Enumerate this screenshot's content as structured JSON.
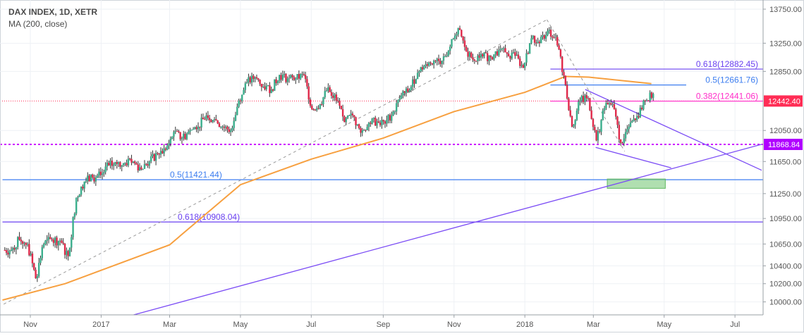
{
  "header": {
    "title": "DAX INDEX, 1D, XETR",
    "indicator": "MA (200, close)"
  },
  "colors": {
    "up": "#3aae8c",
    "down": "#e0294a",
    "ma": "#f7a040",
    "fib_purple": "#6a40f0",
    "fib_blue": "#3d7ef0",
    "fib_pink": "#ff2bc8",
    "magenta": "#cc10ff",
    "last_price": "#ff2d55",
    "trend": "#7b4cf5",
    "zone": "#8fd18f"
  },
  "chart_data": {
    "type": "candlestick",
    "title": "DAX INDEX, 1D, XETR",
    "y_scale": "log",
    "ylim": [
      9870,
      13850
    ],
    "y_ticks": [
      {
        "value": 13750,
        "label": "13750.00"
      },
      {
        "value": 13250,
        "label": "13250.00"
      },
      {
        "value": 12850,
        "label": "12850.00"
      },
      {
        "value": 12050,
        "label": "12050.00"
      },
      {
        "value": 11650,
        "label": "11650.00"
      },
      {
        "value": 11250,
        "label": "11250.00"
      },
      {
        "value": 10950,
        "label": "10950.00"
      },
      {
        "value": 10650,
        "label": "10650.00"
      },
      {
        "value": 10400,
        "label": "10400.00"
      },
      {
        "value": 10200,
        "label": "10200.00"
      },
      {
        "value": 10000,
        "label": "10000.00"
      }
    ],
    "x_range": [
      "2016-10-08",
      "2018-07-25"
    ],
    "x_ticks": [
      {
        "date": "2016-11-01",
        "label": "Nov"
      },
      {
        "date": "2017-01-01",
        "label": "2017"
      },
      {
        "date": "2017-03-01",
        "label": "Mar"
      },
      {
        "date": "2017-05-01",
        "label": "May"
      },
      {
        "date": "2017-07-01",
        "label": "Jul"
      },
      {
        "date": "2017-09-01",
        "label": "Sep"
      },
      {
        "date": "2017-11-01",
        "label": "Nov"
      },
      {
        "date": "2018-01-01",
        "label": "2018"
      },
      {
        "date": "2018-03-01",
        "label": "Mar"
      },
      {
        "date": "2018-05-01",
        "label": "May"
      },
      {
        "date": "2018-07-01",
        "label": "Jul"
      }
    ],
    "price_series": {
      "start": "2016-10-10",
      "step_days": 7,
      "closes": [
        10580,
        10700,
        10650,
        10260,
        10650,
        10700,
        10690,
        10510,
        11200,
        11400,
        11450,
        11480,
        11600,
        11620,
        11630,
        11650,
        11550,
        11650,
        11750,
        11800,
        12030,
        11950,
        12050,
        12100,
        12250,
        12200,
        12100,
        12050,
        12450,
        12700,
        12770,
        12640,
        12600,
        12800,
        12750,
        12750,
        12800,
        12330,
        12400,
        12630,
        12450,
        12160,
        12250,
        12020,
        12150,
        12170,
        12140,
        12300,
        12520,
        12590,
        12830,
        12950,
        13000,
        13000,
        13200,
        13470,
        13130,
        13000,
        13060,
        13050,
        13150,
        13100,
        13070,
        12900,
        13320,
        13250,
        13430,
        13340,
        12790,
        12100,
        12450,
        12480,
        11920,
        12350,
        12400,
        11890,
        12100,
        12240,
        12440,
        12540
      ]
    },
    "ma200": [
      {
        "date": "2016-10-08",
        "value": 10020
      },
      {
        "date": "2016-12-01",
        "value": 10200
      },
      {
        "date": "2017-01-01",
        "value": 10350
      },
      {
        "date": "2017-03-01",
        "value": 10640
      },
      {
        "date": "2017-05-01",
        "value": 11360
      },
      {
        "date": "2017-07-01",
        "value": 11680
      },
      {
        "date": "2017-09-01",
        "value": 11950
      },
      {
        "date": "2017-11-01",
        "value": 12300
      },
      {
        "date": "2018-01-01",
        "value": 12560
      },
      {
        "date": "2018-02-05",
        "value": 12780
      },
      {
        "date": "2018-02-25",
        "value": 12770
      },
      {
        "date": "2018-04-20",
        "value": 12680
      }
    ],
    "fib_levels": [
      {
        "label": "0.618(12882.45)",
        "value": 12882.45,
        "from": "2018-01-23",
        "to": "2018-07-25",
        "color": "fib_purple"
      },
      {
        "label": "0.5(12661.76)",
        "value": 12661.76,
        "from": "2018-01-23",
        "to": "2018-05-20",
        "color": "fib_blue"
      },
      {
        "label": "0.382(12441.06)",
        "value": 12441.06,
        "from": "2018-01-23",
        "to": "2018-07-25",
        "color": "fib_pink"
      },
      {
        "label": "0.5(11421.44)",
        "value": 11421.44,
        "from": "2016-10-08",
        "to": "2018-07-25",
        "color": "fib_blue"
      },
      {
        "label": "0.618(10908.04)",
        "value": 10908.04,
        "from": "2016-10-08",
        "to": "2018-07-25",
        "color": "fib_purple"
      }
    ],
    "horizontal_lines": [
      {
        "label": "11868.84",
        "value": 11868.84,
        "style": "dotted",
        "color": "magenta"
      },
      {
        "label": "12442.40",
        "value": 12442.4,
        "style": "dotted-thin",
        "color": "last_price"
      }
    ],
    "trendlines": [
      {
        "name": "long-term-support",
        "from": {
          "date": "2017-01-29",
          "value": 9860
        },
        "to": {
          "date": "2018-07-24",
          "value": 11870
        }
      },
      {
        "name": "wedge-upper",
        "from": {
          "date": "2018-02-22",
          "value": 12600
        },
        "to": {
          "date": "2018-07-24",
          "value": 11540
        }
      },
      {
        "name": "wedge-lower",
        "from": {
          "date": "2018-03-03",
          "value": 11830
        },
        "to": {
          "date": "2018-05-07",
          "value": 11570
        }
      },
      {
        "name": "fib-swing-up",
        "dashed": true,
        "from": {
          "date": "2016-10-09",
          "value": 9975
        },
        "to": {
          "date": "2018-01-20",
          "value": 13593
        }
      },
      {
        "name": "fib-swing-down",
        "dashed": true,
        "from": {
          "date": "2018-01-20",
          "value": 13593
        },
        "to": {
          "date": "2018-03-28",
          "value": 11780
        }
      }
    ],
    "target_zone": {
      "from": "2018-03-13",
      "to": "2018-05-02",
      "high": 11430,
      "low": 11315
    }
  }
}
